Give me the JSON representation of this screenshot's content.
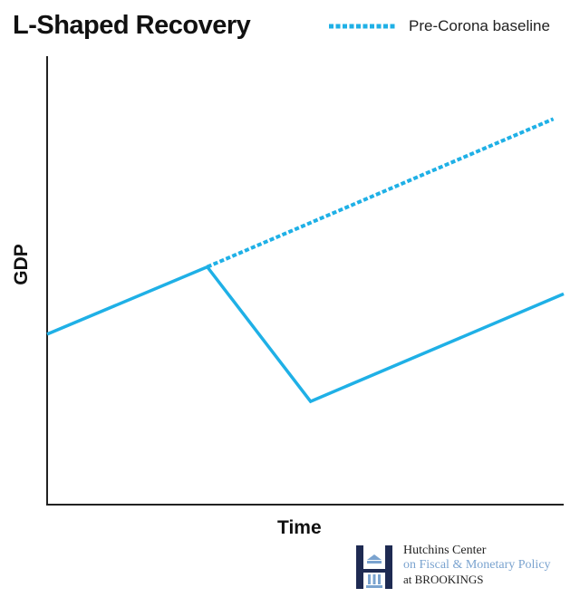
{
  "colors": {
    "series": "#1fb0e6",
    "axis": "#222222",
    "text": "#111111",
    "logo_navy": "#1e2a52",
    "logo_light": "#7aa3cf"
  },
  "chart_data": {
    "type": "line",
    "title": "L-Shaped Recovery",
    "xlabel": "Time",
    "ylabel": "GDP",
    "xlim": [
      0,
      100
    ],
    "ylim": [
      0,
      100
    ],
    "grid": false,
    "axis_ticks": false,
    "legend": {
      "placement": "top-right"
    },
    "series": [
      {
        "name": "",
        "style": "solid",
        "x": [
          0,
          31,
          51,
          100
        ],
        "y": [
          38,
          53,
          23,
          47
        ]
      },
      {
        "name": "Pre-Corona baseline",
        "style": "dotted",
        "x": [
          31,
          98
        ],
        "y": [
          53,
          86
        ]
      }
    ]
  },
  "logo": {
    "line1": "Hutchins Center",
    "line2": "on Fiscal & Monetary Policy",
    "line3_prefix": "at",
    "line3_brand": "BROOKINGS"
  }
}
